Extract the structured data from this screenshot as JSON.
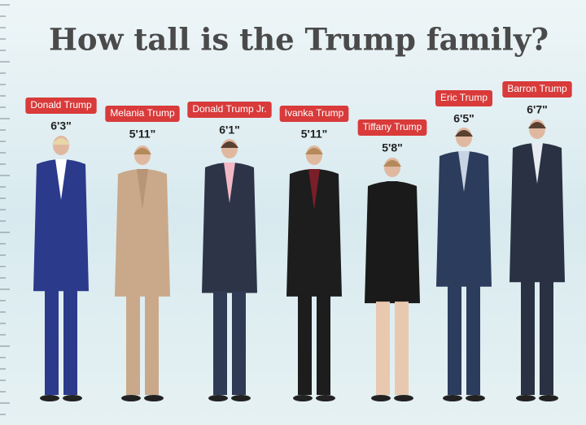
{
  "title": "How tall is the Trump family?",
  "people": [
    {
      "name": "Donald Trump",
      "height": "6'3\""
    },
    {
      "name": "Melania Trump",
      "height": "5'11\""
    },
    {
      "name": "Donald Trump Jr.",
      "height": "6'1\""
    },
    {
      "name": "Ivanka Trump",
      "height": "5'11\""
    },
    {
      "name": "Tiffany Trump",
      "height": "5'8\""
    },
    {
      "name": "Eric Trump",
      "height": "6'5\""
    },
    {
      "name": "Barron Trump",
      "height": "6'7\""
    }
  ]
}
